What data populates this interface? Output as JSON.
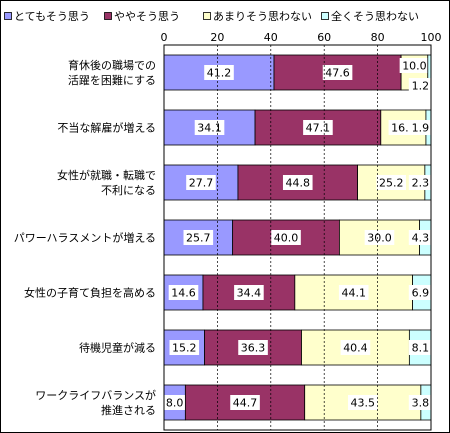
{
  "chart_data": {
    "type": "bar",
    "orientation": "horizontal",
    "stacked": true,
    "categories": [
      "育休後の職場での\n活躍を困難にする",
      "不当な解雇が増える",
      "女性が就職・転職で\n不利になる",
      "パワーハラスメントが増える",
      "女性の子育て負担を高める",
      "待機児童が減る",
      "ワークライフバランスが\n推進される"
    ],
    "series": [
      {
        "name": "とてもそう思う",
        "color": "#9999ff",
        "values": [
          41.2,
          34.1,
          27.7,
          25.7,
          14.6,
          15.2,
          8.0
        ]
      },
      {
        "name": "ややそう思う",
        "color": "#993366",
        "values": [
          47.6,
          47.1,
          44.8,
          40.0,
          34.4,
          36.3,
          44.7
        ]
      },
      {
        "name": "あまりそう思わない",
        "color": "#ffffcc",
        "values": [
          10.0,
          16.9,
          25.2,
          30.0,
          44.1,
          40.4,
          43.5
        ]
      },
      {
        "name": "全くそう思わない",
        "color": "#ccffff",
        "values": [
          1.2,
          1.9,
          2.3,
          4.3,
          6.9,
          8.1,
          3.8
        ]
      }
    ],
    "value_labels": [
      [
        "41.2",
        "47.6",
        "10.0",
        "1.2"
      ],
      [
        "34.1",
        "47.1",
        "16.9",
        "1.9"
      ],
      [
        "27.7",
        "44.8",
        "25.2",
        "2.3"
      ],
      [
        "25.7",
        "40.0",
        "30.0",
        "4.3"
      ],
      [
        "14.6",
        "34.4",
        "44.1",
        "6.9"
      ],
      [
        "15.2",
        "36.3",
        "40.4",
        "8.1"
      ],
      [
        "8.0",
        "44.7",
        "43.5",
        "3.8"
      ]
    ],
    "xlim": [
      0,
      100
    ],
    "x_ticks": [
      0,
      20,
      40,
      60,
      80,
      100
    ],
    "x_tick_labels": [
      "0",
      "20",
      "40",
      "60",
      "80",
      "100"
    ],
    "grid": true,
    "legend_position": "top"
  }
}
